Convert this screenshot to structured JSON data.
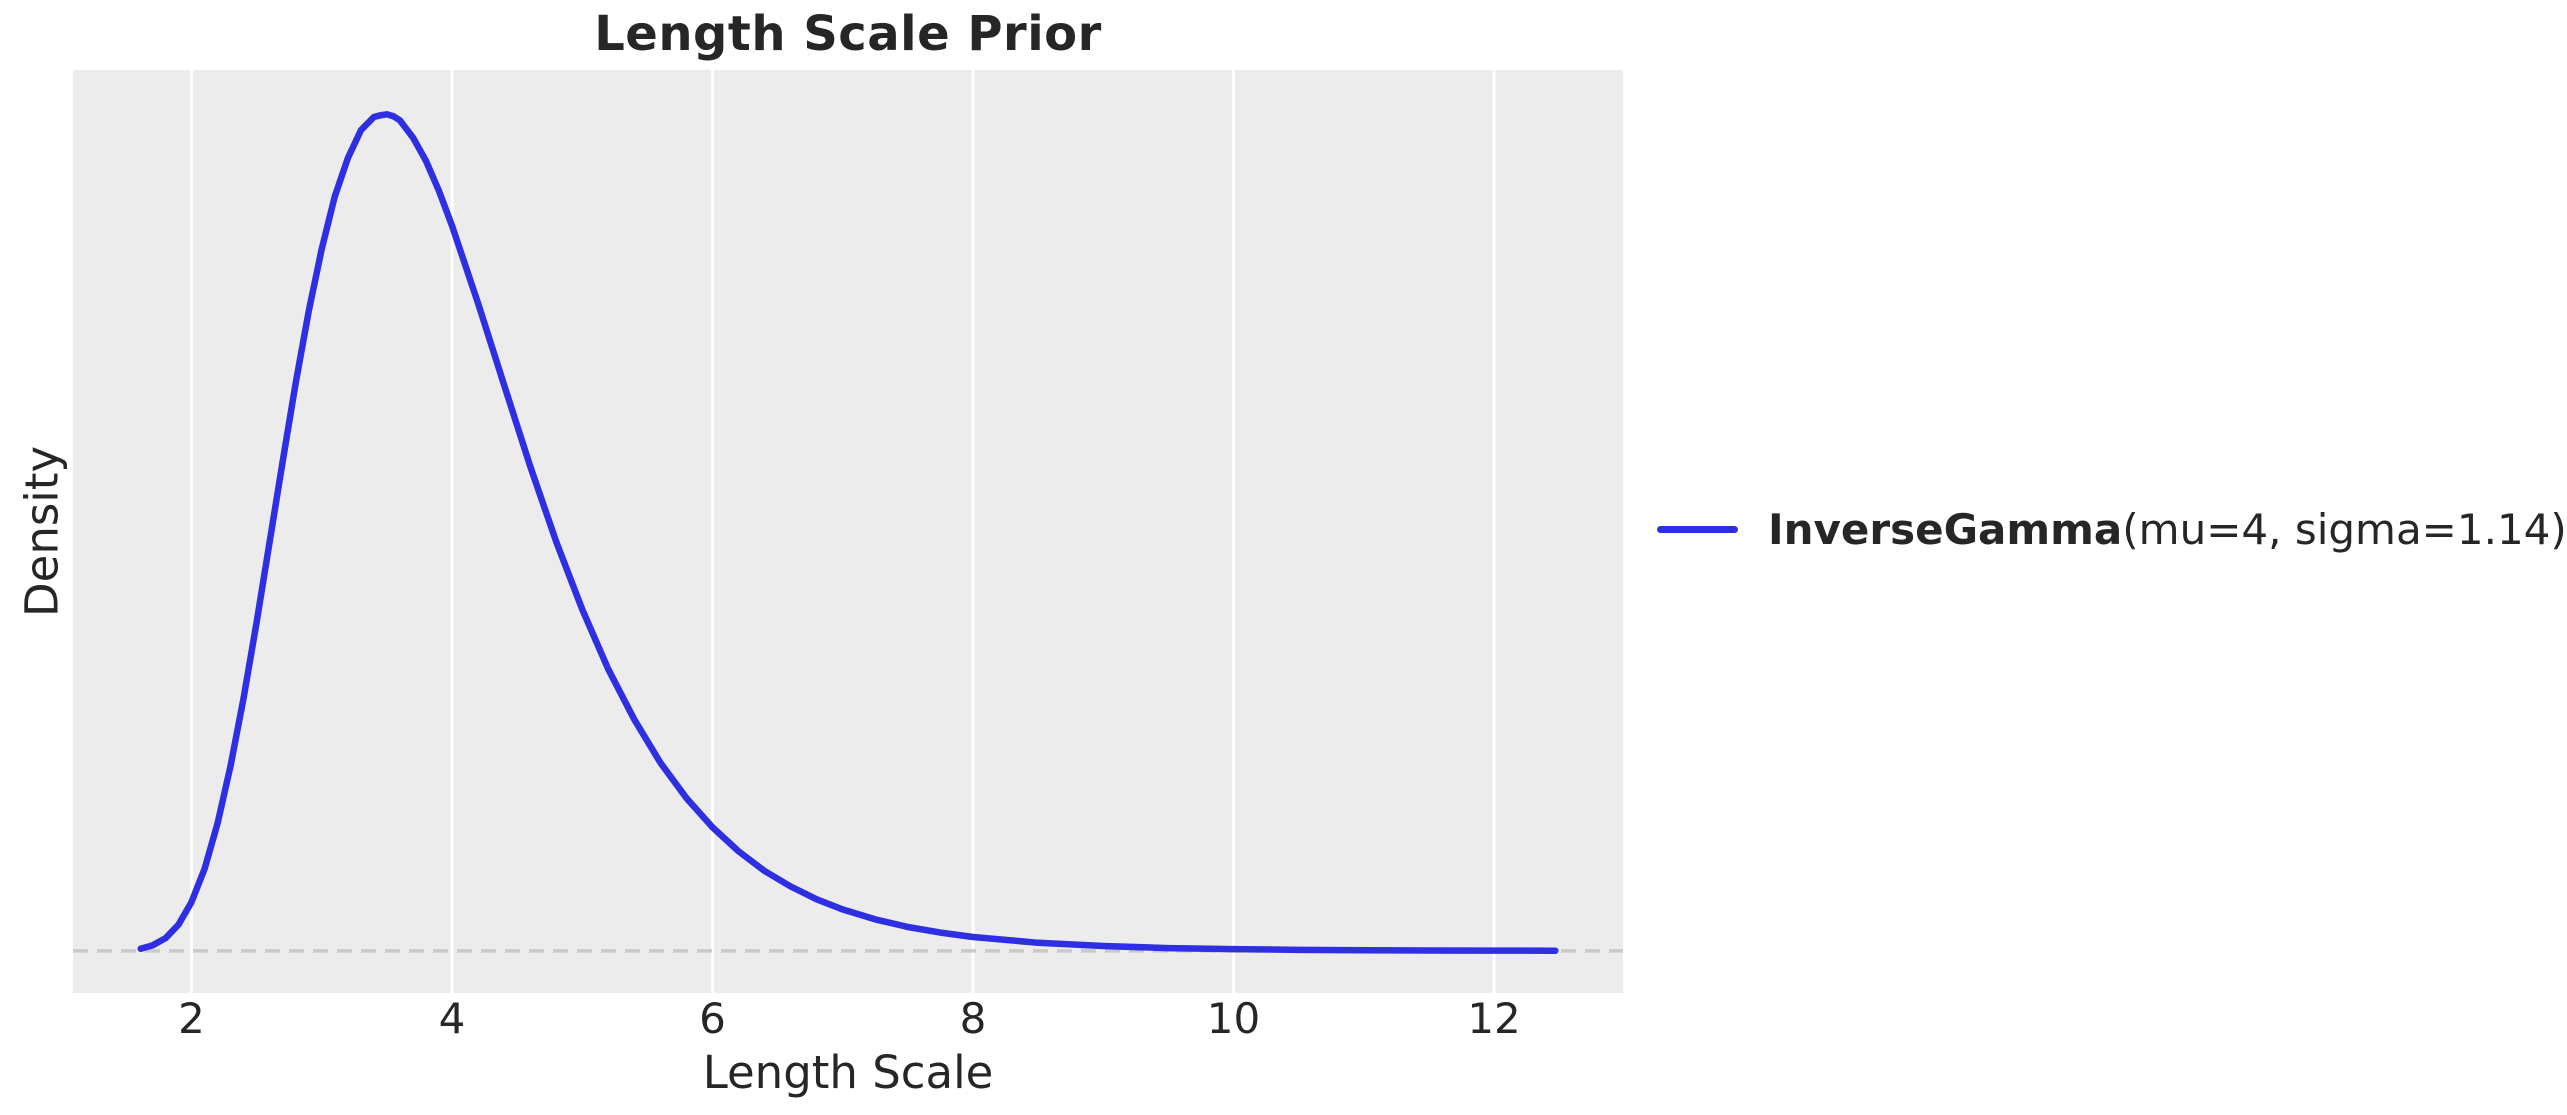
{
  "chart_data": {
    "type": "line",
    "title": "Length Scale Prior",
    "xlabel": "Length Scale",
    "ylabel": "Density",
    "xlim": [
      1.09,
      12.99
    ],
    "ylim": [
      -0.021,
      0.439
    ],
    "xticks": [
      2,
      4,
      6,
      8,
      10,
      12
    ],
    "yticks": [],
    "grid": "vertical-white-gridlines-only",
    "legend_position": "outside-right-center",
    "zero_line": {
      "y": 0,
      "style": "dashed",
      "color": "#c9c9c9"
    },
    "series": [
      {
        "name": "InverseGamma(mu=4, sigma=1.14)",
        "label_bold": "InverseGamma",
        "label_regular": "(mu=4, sigma=1.14)",
        "color": "#2e2ee2",
        "peak": {
          "x": 3.48,
          "y": 0.418
        },
        "points": [
          [
            1.61,
            0.0011
          ],
          [
            1.7,
            0.0027
          ],
          [
            1.8,
            0.0063
          ],
          [
            1.9,
            0.0131
          ],
          [
            2.0,
            0.0243
          ],
          [
            2.1,
            0.0409
          ],
          [
            2.2,
            0.0636
          ],
          [
            2.3,
            0.0923
          ],
          [
            2.4,
            0.126
          ],
          [
            2.5,
            0.164
          ],
          [
            2.6,
            0.204
          ],
          [
            2.7,
            0.244
          ],
          [
            2.8,
            0.283
          ],
          [
            2.9,
            0.319
          ],
          [
            3.0,
            0.35
          ],
          [
            3.1,
            0.376
          ],
          [
            3.2,
            0.395
          ],
          [
            3.3,
            0.409
          ],
          [
            3.4,
            0.4156
          ],
          [
            3.45,
            0.4164
          ],
          [
            3.5,
            0.4169
          ],
          [
            3.55,
            0.416
          ],
          [
            3.6,
            0.4139
          ],
          [
            3.7,
            0.4053
          ],
          [
            3.8,
            0.3937
          ],
          [
            3.9,
            0.3787
          ],
          [
            4.0,
            0.3614
          ],
          [
            4.2,
            0.3227
          ],
          [
            4.4,
            0.282
          ],
          [
            4.6,
            0.2415
          ],
          [
            4.8,
            0.2039
          ],
          [
            5.0,
            0.1701
          ],
          [
            5.2,
            0.1403
          ],
          [
            5.4,
            0.1152
          ],
          [
            5.6,
            0.0938
          ],
          [
            5.8,
            0.0761
          ],
          [
            6.0,
            0.0616
          ],
          [
            6.2,
            0.0496
          ],
          [
            6.4,
            0.0398
          ],
          [
            6.6,
            0.0321
          ],
          [
            6.8,
            0.0257
          ],
          [
            7.0,
            0.0206
          ],
          [
            7.25,
            0.0157
          ],
          [
            7.5,
            0.0119
          ],
          [
            7.75,
            0.0091
          ],
          [
            8.0,
            0.0069
          ],
          [
            8.5,
            0.004
          ],
          [
            9.0,
            0.0024
          ],
          [
            9.5,
            0.0014
          ],
          [
            10.0,
            0.0009
          ],
          [
            10.5,
            0.0005
          ],
          [
            11.0,
            0.0003
          ],
          [
            11.5,
            0.0002
          ],
          [
            12.0,
            0.00013
          ],
          [
            12.47,
            9e-05
          ]
        ]
      }
    ]
  },
  "colors": {
    "figure_background": "#ffffff",
    "panel_background": "#ececec",
    "gridline": "#ffffff",
    "text": "#262626",
    "curve": "#2e2ee2",
    "zero_line": "#c9c9c9"
  }
}
